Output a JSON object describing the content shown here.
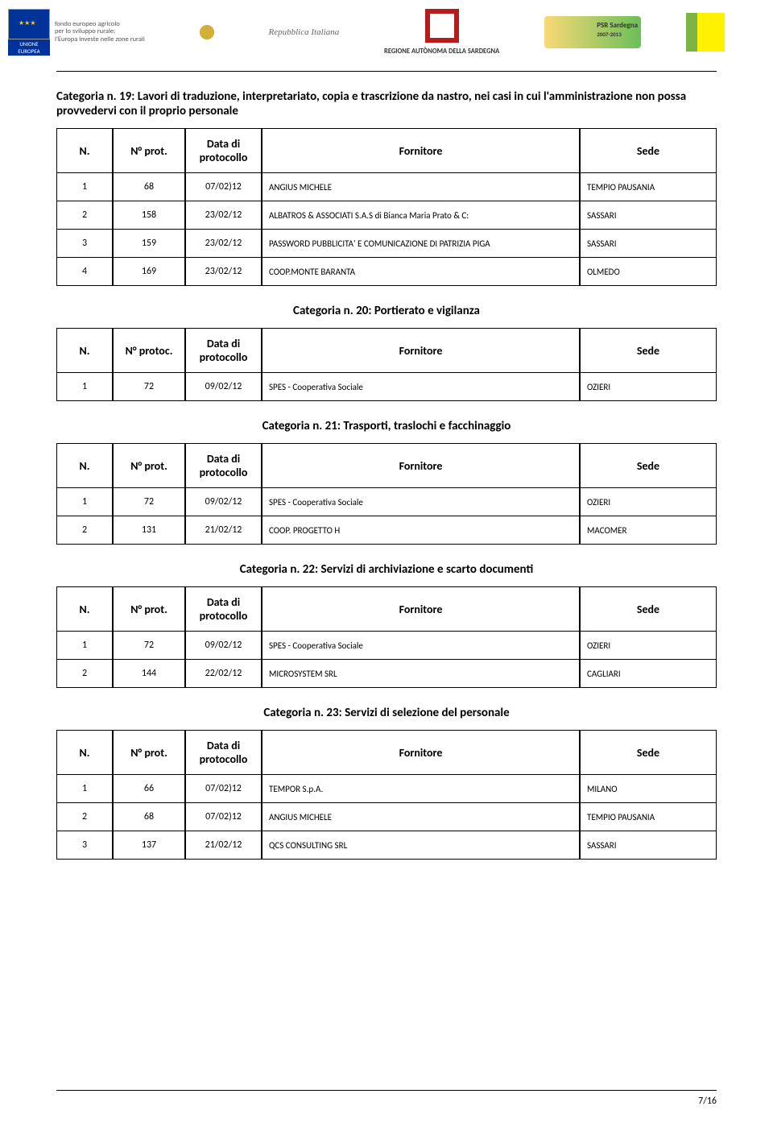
{
  "header_logos": {
    "eu_text": "fondo europeo agricolo\nper lo sviluppo rurale:\nl'Europa investe nelle zone rurali",
    "eu_label": "UNIONE EUROPEA",
    "it_text": "Repubblica Italiana",
    "sard_text": "REGIONE AUTÒNOMA DELLA SARDEGNA",
    "psr_text": "PSR Sardegna",
    "psr_sub": "2007-2013"
  },
  "categories": [
    {
      "title": "Categoria n. 19: Lavori di traduzione, interpretariato, copia e trascrizione da nastro, nei casi in cui l'amministrazione non possa provvedervi con il proprio personale",
      "centered": false,
      "headers": {
        "n": "N.",
        "prot": "N° prot.",
        "data": "Data di protocollo",
        "forn": "Fornitore",
        "sede": "Sede"
      },
      "rows": [
        {
          "n": "1",
          "prot": "68",
          "data": "07/02)12",
          "forn": "ANGIUS MICHELE",
          "sede": "TEMPIO PAUSANIA"
        },
        {
          "n": "2",
          "prot": "158",
          "data": "23/02/12",
          "forn": "ALBATROS & ASSOCIATI S.A.S di Bianca Maria Prato & C:",
          "sede": "SASSARI"
        },
        {
          "n": "3",
          "prot": "159",
          "data": "23/02/12",
          "forn": "PASSWORD PUBBLICITA' E COMUNICAZIONE DI PATRIZIA PIGA",
          "sede": "SASSARI"
        },
        {
          "n": "4",
          "prot": "169",
          "data": "23/02/12",
          "forn": "COOP.MONTE BARANTA",
          "sede": "OLMEDO"
        }
      ]
    },
    {
      "title": "Categoria n. 20: Portierato e vigilanza",
      "centered": true,
      "headers": {
        "n": "N.",
        "prot": "N° protoc.",
        "data": "Data di protocollo",
        "forn": "Fornitore",
        "sede": "Sede"
      },
      "rows": [
        {
          "n": "1",
          "prot": "72",
          "data": "09/02/12",
          "forn": "SPES - Cooperativa Sociale",
          "sede": "OZIERI"
        }
      ]
    },
    {
      "title": "Categoria n. 21: Trasporti, traslochi e facchinaggio",
      "centered": true,
      "headers": {
        "n": "N.",
        "prot": "N° prot.",
        "data": "Data di protocollo",
        "forn": "Fornitore",
        "sede": "Sede"
      },
      "rows": [
        {
          "n": "1",
          "prot": "72",
          "data": "09/02/12",
          "forn": "SPES - Cooperativa Sociale",
          "sede": "OZIERI"
        },
        {
          "n": "2",
          "prot": "131",
          "data": "21/02/12",
          "forn": "COOP. PROGETTO H",
          "sede": "MACOMER"
        }
      ]
    },
    {
      "title": "Categoria n. 22: Servizi di archiviazione e scarto documenti",
      "centered": true,
      "headers": {
        "n": "N.",
        "prot": "N° prot.",
        "data": "Data di protocollo",
        "forn": "Fornitore",
        "sede": "Sede"
      },
      "rows": [
        {
          "n": "1",
          "prot": "72",
          "data": "09/02/12",
          "forn": "SPES - Cooperativa Sociale",
          "sede": "OZIERI"
        },
        {
          "n": "2",
          "prot": "144",
          "data": "22/02/12",
          "forn": "MICROSYSTEM SRL",
          "sede": "CAGLIARI"
        }
      ]
    },
    {
      "title": "Categoria n. 23: Servizi di selezione del personale",
      "centered": true,
      "headers": {
        "n": "N.",
        "prot": "N° prot.",
        "data": "Data di protocollo",
        "forn": "Fornitore",
        "sede": "Sede"
      },
      "rows": [
        {
          "n": "1",
          "prot": "66",
          "data": "07/02)12",
          "forn": "TEMPOR S.p.A.",
          "sede": "MILANO"
        },
        {
          "n": "2",
          "prot": "68",
          "data": "07/02)12",
          "forn": "ANGIUS MICHELE",
          "sede": "TEMPIO PAUSANIA"
        },
        {
          "n": "3",
          "prot": "137",
          "data": "21/02/12",
          "forn": "QCS CONSULTING SRL",
          "sede": "SASSARI"
        }
      ]
    }
  ],
  "page_num": "7/16"
}
